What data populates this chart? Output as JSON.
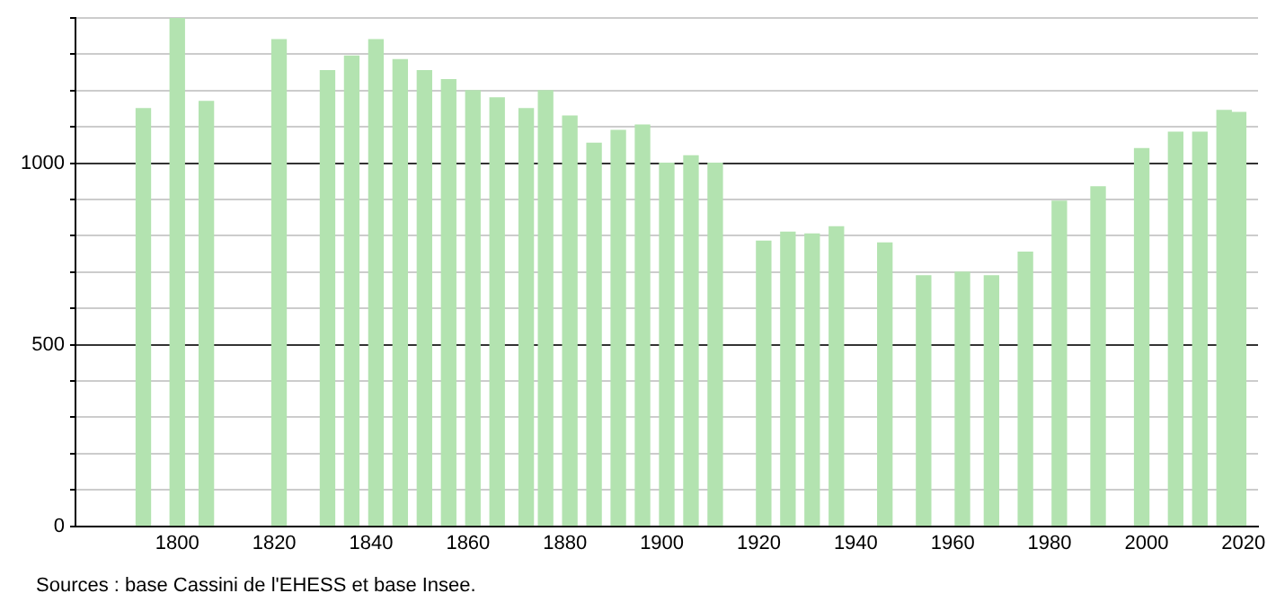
{
  "chart_data": {
    "type": "bar",
    "color": "#b3e3b0",
    "x": [
      1793,
      1800,
      1806,
      1821,
      1831,
      1836,
      1841,
      1846,
      1851,
      1856,
      1861,
      1866,
      1872,
      1876,
      1881,
      1886,
      1891,
      1896,
      1901,
      1906,
      1911,
      1921,
      1926,
      1931,
      1936,
      1946,
      1954,
      1962,
      1968,
      1975,
      1982,
      1990,
      1999,
      2006,
      2011,
      2016,
      2019
    ],
    "values": [
      1150,
      1400,
      1170,
      1340,
      1255,
      1295,
      1340,
      1285,
      1255,
      1230,
      1200,
      1180,
      1150,
      1200,
      1130,
      1055,
      1090,
      1105,
      1000,
      1020,
      1000,
      785,
      810,
      805,
      825,
      780,
      690,
      700,
      690,
      755,
      895,
      935,
      1040,
      1085,
      1085,
      1145,
      1140
    ],
    "xlim": [
      1779,
      2023
    ],
    "xticks": [
      1800,
      1820,
      1840,
      1860,
      1880,
      1900,
      1920,
      1940,
      1960,
      1980,
      2000,
      2020
    ],
    "ylim": [
      0,
      1400
    ],
    "yticks": [
      0,
      {
        "value": 100,
        "label": null
      },
      {
        "value": 200,
        "label": null
      },
      {
        "value": 300,
        "label": null
      },
      {
        "value": 400,
        "label": null
      },
      500,
      {
        "value": 600,
        "label": null
      },
      {
        "value": 700,
        "label": null
      },
      {
        "value": 800,
        "label": null
      },
      {
        "value": 900,
        "label": null
      },
      1000,
      {
        "value": 1100,
        "label": null
      },
      {
        "value": 1200,
        "label": null
      },
      {
        "value": 1300,
        "label": null
      },
      {
        "value": 1400,
        "label": null
      }
    ],
    "grid": "y",
    "annotations": [
      "Sources : base Cassini de l'EHESS et base Insee."
    ]
  }
}
